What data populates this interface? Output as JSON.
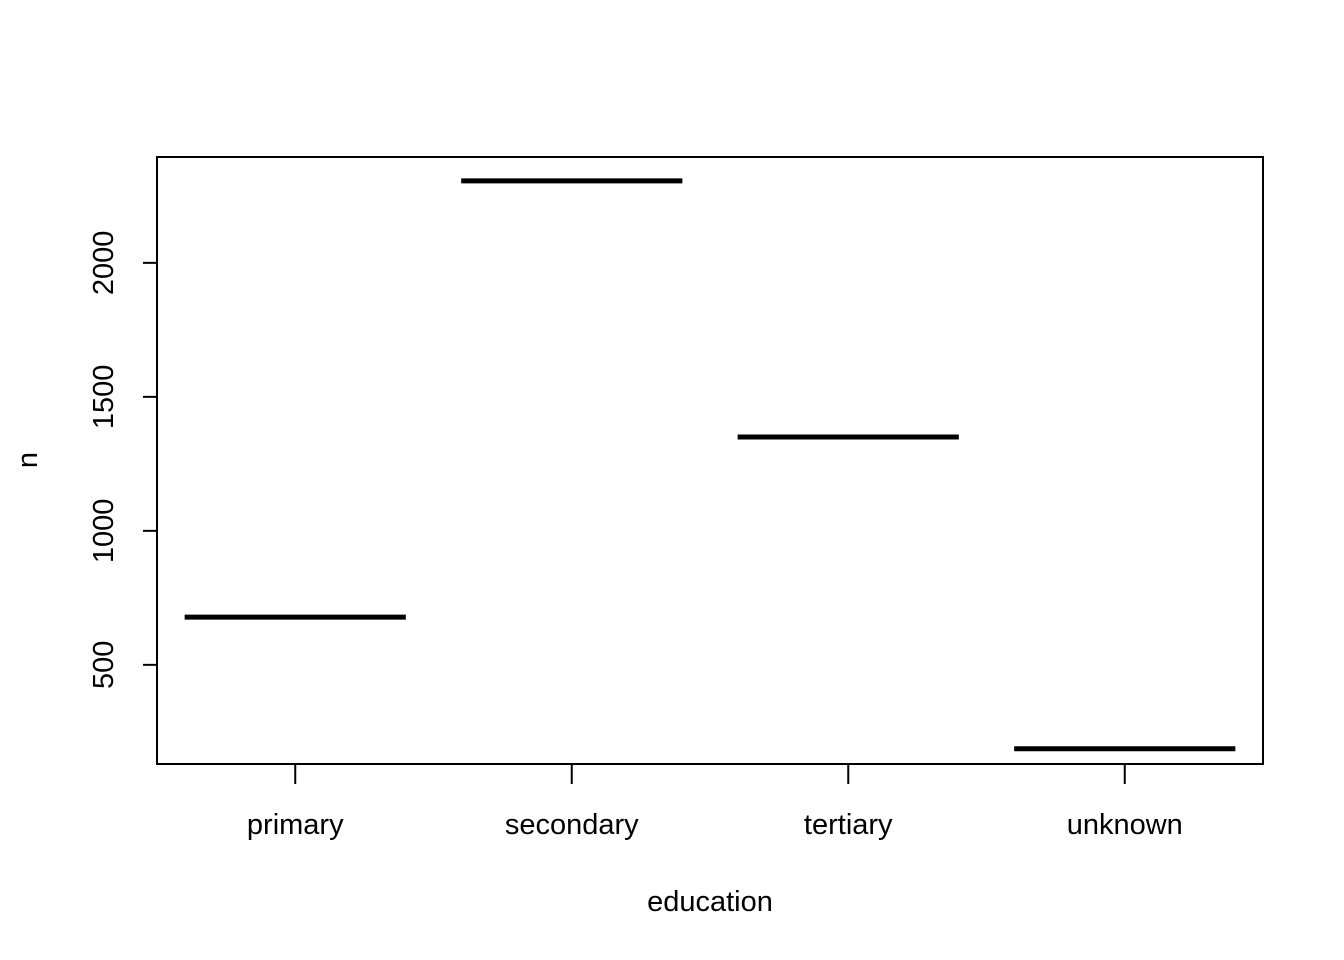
{
  "chart_data": {
    "type": "bar",
    "style": "horizontal segments per category (median lines)",
    "categories": [
      "primary",
      "secondary",
      "tertiary",
      "unknown"
    ],
    "values": [
      678,
      2306,
      1350,
      187
    ],
    "title": "",
    "xlabel": "education",
    "ylabel": "n",
    "ylim": [
      130,
      2395
    ],
    "yticks": [
      500,
      1000,
      1500,
      2000
    ],
    "ytick_labels": [
      "500",
      "1000",
      "1500",
      "2000"
    ],
    "grid": false,
    "legend": "none",
    "colors": {
      "line": "#000000",
      "frame": "#000000",
      "background": "#ffffff"
    }
  }
}
